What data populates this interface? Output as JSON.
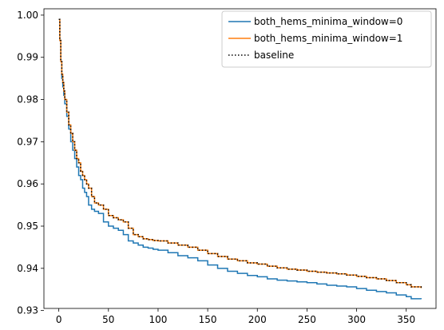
{
  "chart_data": {
    "type": "line",
    "title": "",
    "xlabel": "",
    "ylabel": "",
    "xlim": [
      -15,
      380
    ],
    "ylim": [
      0.9305,
      1.0015
    ],
    "xticks": [
      0,
      50,
      100,
      150,
      200,
      250,
      300,
      350
    ],
    "yticks": [
      0.93,
      0.94,
      0.95,
      0.96,
      0.97,
      0.98,
      0.99,
      1.0
    ],
    "ytick_labels": [
      "0.93",
      "0.94",
      "0.95",
      "0.96",
      "0.97",
      "0.98",
      "0.99",
      "1.00"
    ],
    "grid": false,
    "legend_position": "top-right",
    "series": [
      {
        "name": "both_hems_minima_window=0",
        "color": "#1f77b4",
        "style": "solid",
        "step": true,
        "x": [
          0,
          1,
          2,
          3,
          4,
          5,
          6,
          8,
          10,
          12,
          14,
          16,
          18,
          20,
          22,
          24,
          26,
          28,
          30,
          33,
          36,
          40,
          45,
          50,
          55,
          60,
          65,
          70,
          75,
          80,
          85,
          90,
          95,
          100,
          110,
          120,
          130,
          140,
          150,
          160,
          170,
          180,
          190,
          200,
          210,
          220,
          230,
          240,
          250,
          260,
          270,
          280,
          290,
          300,
          310,
          320,
          330,
          340,
          350,
          355,
          365
        ],
        "y": [
          0.999,
          0.994,
          0.989,
          0.985,
          0.983,
          0.981,
          0.979,
          0.976,
          0.973,
          0.97,
          0.968,
          0.966,
          0.964,
          0.962,
          0.961,
          0.959,
          0.958,
          0.957,
          0.955,
          0.954,
          0.9535,
          0.953,
          0.951,
          0.95,
          0.9495,
          0.949,
          0.948,
          0.9465,
          0.946,
          0.9455,
          0.945,
          0.9448,
          0.9445,
          0.9443,
          0.9437,
          0.943,
          0.9425,
          0.9418,
          0.9408,
          0.94,
          0.9393,
          0.9388,
          0.9383,
          0.938,
          0.9375,
          0.9372,
          0.937,
          0.9368,
          0.9366,
          0.9363,
          0.936,
          0.9358,
          0.9356,
          0.9352,
          0.9348,
          0.9345,
          0.9342,
          0.9337,
          0.9333,
          0.9328,
          0.9327
        ]
      },
      {
        "name": "both_hems_minima_window=1",
        "color": "#ff7f0e",
        "style": "solid",
        "step": true,
        "x": [
          0,
          1,
          2,
          3,
          4,
          5,
          6,
          8,
          10,
          12,
          14,
          16,
          18,
          20,
          22,
          24,
          26,
          28,
          30,
          33,
          36,
          40,
          45,
          50,
          55,
          60,
          65,
          70,
          75,
          80,
          85,
          90,
          95,
          100,
          110,
          120,
          130,
          140,
          150,
          160,
          170,
          180,
          190,
          200,
          210,
          220,
          230,
          240,
          250,
          260,
          270,
          280,
          290,
          300,
          310,
          320,
          330,
          340,
          350,
          355,
          365
        ],
        "y": [
          0.999,
          0.994,
          0.989,
          0.986,
          0.984,
          0.982,
          0.98,
          0.977,
          0.974,
          0.972,
          0.97,
          0.968,
          0.966,
          0.965,
          0.963,
          0.962,
          0.961,
          0.96,
          0.959,
          0.957,
          0.9555,
          0.955,
          0.954,
          0.9525,
          0.952,
          0.9515,
          0.951,
          0.9495,
          0.948,
          0.9475,
          0.947,
          0.9468,
          0.9466,
          0.9465,
          0.946,
          0.9455,
          0.945,
          0.9443,
          0.9435,
          0.9428,
          0.9422,
          0.9418,
          0.9413,
          0.941,
          0.9405,
          0.9401,
          0.9398,
          0.9396,
          0.9393,
          0.9391,
          0.9389,
          0.9387,
          0.9384,
          0.9381,
          0.9378,
          0.9375,
          0.9371,
          0.9366,
          0.9361,
          0.9356,
          0.9353
        ]
      },
      {
        "name": "baseline",
        "color": "#000000",
        "style": "dotted",
        "step": true,
        "x": [
          0,
          1,
          2,
          3,
          4,
          5,
          6,
          8,
          10,
          12,
          14,
          16,
          18,
          20,
          22,
          24,
          26,
          28,
          30,
          33,
          36,
          40,
          45,
          50,
          55,
          60,
          65,
          70,
          75,
          80,
          85,
          90,
          95,
          100,
          110,
          120,
          130,
          140,
          150,
          160,
          170,
          180,
          190,
          200,
          210,
          220,
          230,
          240,
          250,
          260,
          270,
          280,
          290,
          300,
          310,
          320,
          330,
          340,
          350,
          355,
          365
        ],
        "y": [
          0.999,
          0.994,
          0.989,
          0.986,
          0.984,
          0.982,
          0.98,
          0.977,
          0.974,
          0.972,
          0.97,
          0.968,
          0.966,
          0.965,
          0.963,
          0.962,
          0.961,
          0.96,
          0.959,
          0.957,
          0.9555,
          0.955,
          0.954,
          0.9525,
          0.952,
          0.9515,
          0.951,
          0.9495,
          0.948,
          0.9475,
          0.947,
          0.9468,
          0.9466,
          0.9465,
          0.946,
          0.9455,
          0.945,
          0.9443,
          0.9435,
          0.9428,
          0.9422,
          0.9418,
          0.9413,
          0.941,
          0.9405,
          0.9401,
          0.9398,
          0.9396,
          0.9393,
          0.9391,
          0.9389,
          0.9387,
          0.9384,
          0.9381,
          0.9378,
          0.9375,
          0.9371,
          0.9366,
          0.9361,
          0.9356,
          0.9353
        ]
      }
    ]
  }
}
